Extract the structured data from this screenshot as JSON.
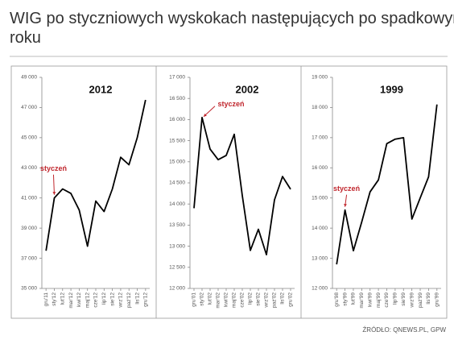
{
  "title": "WIG po styczniowych wyskokach następujących po spadkowym roku",
  "source": "ŹRÓDŁO: QNEWS.PL, GPW",
  "chart_data": [
    {
      "type": "line",
      "title": "2012",
      "annotation": "styczeń",
      "color": "#000000",
      "categories": [
        "gru'11",
        "sty'12",
        "lut'12",
        "mar'12",
        "kwi'12",
        "maj'12",
        "cze'12",
        "lip'12",
        "sie'12",
        "wrz'12",
        "paź'12",
        "lis'12",
        "gru'12"
      ],
      "values": [
        37500,
        41000,
        41600,
        41300,
        40200,
        37800,
        40800,
        40100,
        41600,
        43700,
        43200,
        45000,
        47500
      ],
      "ylim": [
        35000,
        49000
      ],
      "yticks": [
        {
          "value": 35000,
          "label": "35 000"
        },
        {
          "value": 37000,
          "label": "37 000"
        },
        {
          "value": 39000,
          "label": "39 000"
        },
        {
          "value": 41000,
          "label": "41 000"
        },
        {
          "value": 43000,
          "label": "43 000"
        },
        {
          "value": 45000,
          "label": "45 000"
        },
        {
          "value": 47000,
          "label": "47 000"
        },
        {
          "value": 49000,
          "label": "49 000"
        }
      ]
    },
    {
      "type": "line",
      "title": "2002",
      "annotation": "styczeń",
      "color": "#000000",
      "categories": [
        "gru'01",
        "sty'02",
        "lut'02",
        "mar'02",
        "kwi'02",
        "maj'02",
        "cze'02",
        "lip'02",
        "sie'02",
        "wrz'02",
        "paź'02",
        "lis'02",
        "gru'02"
      ],
      "values": [
        13900,
        16050,
        15300,
        15050,
        15150,
        15650,
        14200,
        12900,
        13400,
        12800,
        14100,
        14650,
        14350
      ],
      "ylim": [
        12000,
        17000
      ],
      "yticks": [
        {
          "value": 12000,
          "label": "12 000"
        },
        {
          "value": 12500,
          "label": "12 500"
        },
        {
          "value": 13000,
          "label": "13 000"
        },
        {
          "value": 13500,
          "label": "13 500"
        },
        {
          "value": 14000,
          "label": "14 000"
        },
        {
          "value": 14500,
          "label": "14 500"
        },
        {
          "value": 15000,
          "label": "15 000"
        },
        {
          "value": 15500,
          "label": "15 500"
        },
        {
          "value": 16000,
          "label": "16 000"
        },
        {
          "value": 16500,
          "label": "16 500"
        },
        {
          "value": 17000,
          "label": "17 000"
        }
      ]
    },
    {
      "type": "line",
      "title": "1999",
      "annotation": "styczeń",
      "color": "#000000",
      "categories": [
        "gru'98",
        "sty'99",
        "lut'99",
        "mar'99",
        "kwi'99",
        "maj'99",
        "cze'99",
        "lip'99",
        "sie'99",
        "wrz'99",
        "paź'99",
        "lis'99",
        "gru'99"
      ],
      "values": [
        12800,
        14600,
        13250,
        14200,
        15200,
        15600,
        16800,
        16950,
        17000,
        14300,
        15000,
        15700,
        18100
      ],
      "ylim": [
        12000,
        19000
      ],
      "yticks": [
        {
          "value": 12000,
          "label": "12 000"
        },
        {
          "value": 13000,
          "label": "13 000"
        },
        {
          "value": 14000,
          "label": "14 000"
        },
        {
          "value": 15000,
          "label": "15 000"
        },
        {
          "value": 16000,
          "label": "16 000"
        },
        {
          "value": 17000,
          "label": "17 000"
        },
        {
          "value": 18000,
          "label": "18 000"
        },
        {
          "value": 19000,
          "label": "19 000"
        }
      ]
    }
  ]
}
